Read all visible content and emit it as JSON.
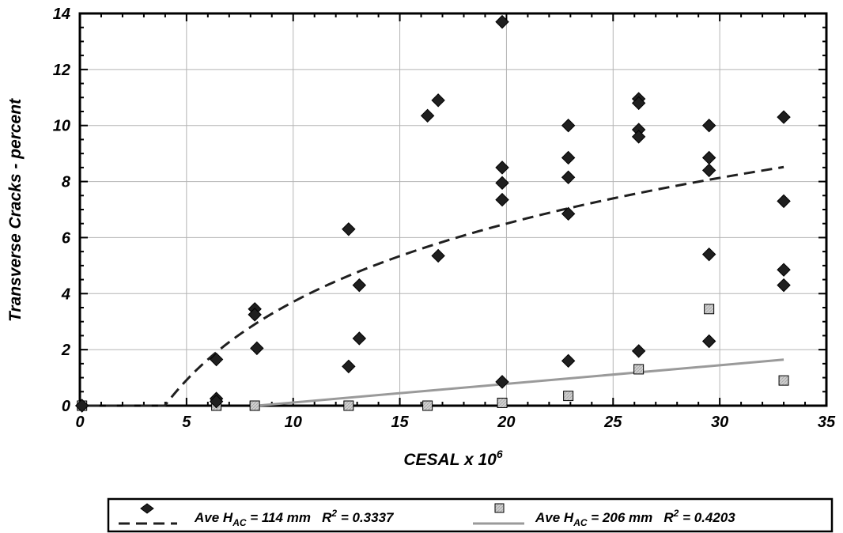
{
  "chart_data": {
    "type": "scatter",
    "xlabel": "CESAL x 10",
    "xlabel_sup": "6",
    "ylabel": "Transverse Cracks - percent",
    "xlim": [
      0,
      35
    ],
    "ylim": [
      0,
      14
    ],
    "xticks": [
      0,
      5,
      10,
      15,
      20,
      25,
      30,
      35
    ],
    "yticks": [
      0,
      2,
      4,
      6,
      8,
      10,
      12,
      14
    ],
    "grid": true,
    "legend_position": "bottom",
    "series": [
      {
        "legend": {
          "prefix": "Ave H",
          "sub": "AC",
          "middle": " = 114 mm   R",
          "sup": "2",
          "suffix": " = 0.3337"
        },
        "marker": "diamond",
        "color": "#1f1f1f",
        "points": [
          [
            0.1,
            0.0
          ],
          [
            6.4,
            1.65
          ],
          [
            6.4,
            0.25
          ],
          [
            6.4,
            0.15
          ],
          [
            8.2,
            3.45
          ],
          [
            8.2,
            3.25
          ],
          [
            8.3,
            2.05
          ],
          [
            12.6,
            6.3
          ],
          [
            12.6,
            1.4
          ],
          [
            13.1,
            4.3
          ],
          [
            13.1,
            2.4
          ],
          [
            16.3,
            10.35
          ],
          [
            16.8,
            10.9
          ],
          [
            16.8,
            5.35
          ],
          [
            19.8,
            13.7
          ],
          [
            19.8,
            8.5
          ],
          [
            19.8,
            7.95
          ],
          [
            19.8,
            7.35
          ],
          [
            19.8,
            0.85
          ],
          [
            22.9,
            10.0
          ],
          [
            22.9,
            8.85
          ],
          [
            22.9,
            8.15
          ],
          [
            22.9,
            6.85
          ],
          [
            22.9,
            1.6
          ],
          [
            26.2,
            10.95
          ],
          [
            26.2,
            10.8
          ],
          [
            26.2,
            9.85
          ],
          [
            26.2,
            9.6
          ],
          [
            26.2,
            1.95
          ],
          [
            29.5,
            10.0
          ],
          [
            29.5,
            8.85
          ],
          [
            29.5,
            8.4
          ],
          [
            29.5,
            5.4
          ],
          [
            29.5,
            2.3
          ],
          [
            33.0,
            10.3
          ],
          [
            33.0,
            7.3
          ],
          [
            33.0,
            4.85
          ],
          [
            33.0,
            4.3
          ]
        ],
        "trend": "log",
        "trend_range": [
          0.4,
          33.0
        ]
      },
      {
        "legend": {
          "prefix": "Ave H",
          "sub": "AC",
          "middle": " = 206 mm   R",
          "sup": "2",
          "suffix": " = 0.4203"
        },
        "marker": "square",
        "color": "#c8c8c8",
        "trend_color": "#9a9a9a",
        "points": [
          [
            0.1,
            0.0
          ],
          [
            6.4,
            0.0
          ],
          [
            8.2,
            0.0
          ],
          [
            12.6,
            0.0
          ],
          [
            16.3,
            0.0
          ],
          [
            19.8,
            0.1
          ],
          [
            22.9,
            0.35
          ],
          [
            26.2,
            1.3
          ],
          [
            29.5,
            3.45
          ],
          [
            33.0,
            0.9
          ]
        ],
        "trend": "linear",
        "trend_range": [
          8.3,
          33.0
        ]
      }
    ]
  }
}
